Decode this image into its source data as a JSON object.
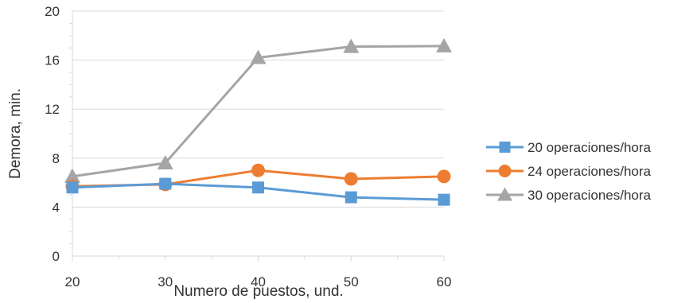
{
  "chart_data": {
    "type": "line",
    "title": "",
    "xlabel": "Numero de puestos, und.",
    "ylabel": "Demora, min.",
    "x": [
      20,
      30,
      40,
      50,
      60
    ],
    "xlim": [
      20,
      60
    ],
    "ylim": [
      0,
      20
    ],
    "yticks": [
      0,
      4,
      8,
      12,
      16,
      20
    ],
    "grid": "horizontal",
    "legend_position": "right",
    "series": [
      {
        "name": "20 operaciones/hora",
        "color": "#5B9BD5",
        "marker": "square",
        "values": [
          5.6,
          5.9,
          5.6,
          4.8,
          4.6
        ]
      },
      {
        "name": "24 operaciones/hora",
        "color": "#ED7D31",
        "marker": "circle",
        "values": [
          5.7,
          5.85,
          7.0,
          6.3,
          6.5
        ]
      },
      {
        "name": "30 operaciones/hora",
        "color": "#A5A5A5",
        "marker": "triangle",
        "values": [
          6.5,
          7.6,
          16.2,
          17.1,
          17.15
        ]
      }
    ]
  }
}
